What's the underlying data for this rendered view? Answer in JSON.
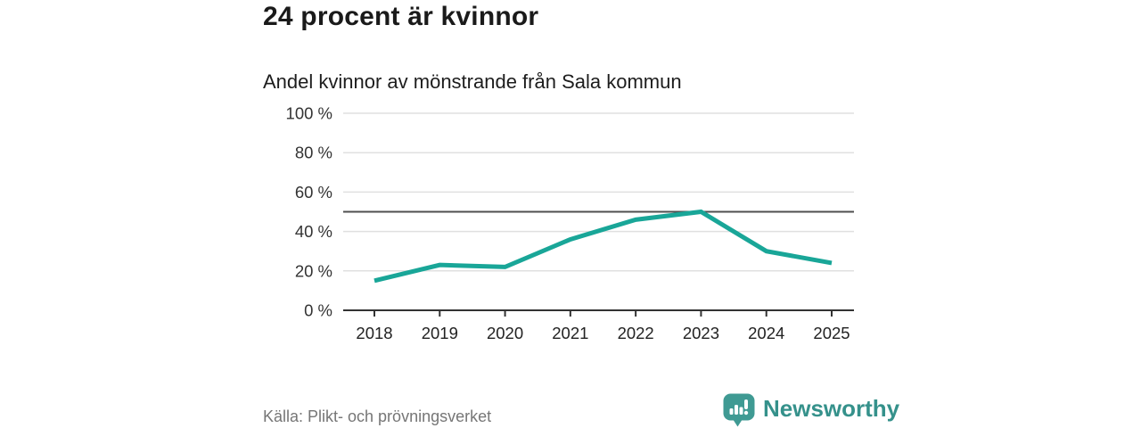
{
  "header": {
    "title": "24 procent är kvinnor",
    "subtitle": "Andel kvinnor av mönstrande från Sala kommun"
  },
  "chart_data": {
    "type": "line",
    "title": "24 procent är kvinnor",
    "subtitle": "Andel kvinnor av mönstrande från Sala kommun",
    "x": [
      "2018",
      "2019",
      "2020",
      "2021",
      "2022",
      "2023",
      "2024",
      "2025"
    ],
    "series": [
      {
        "name": "Andel kvinnor av mönstrande",
        "values": [
          15,
          23,
          22,
          36,
          46,
          50,
          30,
          24
        ]
      }
    ],
    "ylim": [
      0,
      100
    ],
    "ytick_interval": 20,
    "ytick_labels": [
      "0 %",
      "20 %",
      "40 %",
      "60 %",
      "80 %",
      "100 %"
    ],
    "reference_line": 50,
    "grid": "horizontal",
    "legend_position": "none",
    "line_color": "#19a698",
    "grid_color": "#e0e0e0",
    "reference_line_color": "#4f4f4f",
    "axis_color": "#333333",
    "tick_label_color": "#333333"
  },
  "footer": {
    "source": "Källa: Plikt- och prövningsverket",
    "brand": "Newsworthy"
  },
  "colors": {
    "accent": "#19a698",
    "brand_teal": "#3f9a93",
    "title_text": "#1a1a1a",
    "muted_text": "#767676",
    "background": "#ffffff"
  }
}
